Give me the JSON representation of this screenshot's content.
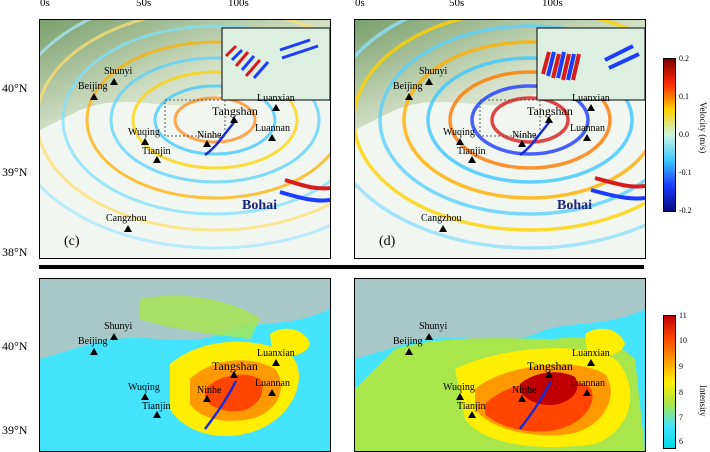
{
  "time_ticks": [
    "0s",
    "50s",
    "100s"
  ],
  "lat_labels": {
    "n40": "40°N",
    "n39": "39°N",
    "n38": "38°N"
  },
  "places": {
    "shunyi": "Shunyi",
    "beijing": "Beijing",
    "tangshan": "Tangshan",
    "luanxian": "Luanxian",
    "luannan": "Luannan",
    "wuqing": "Wuqing",
    "ninhe": "Ninhe",
    "tianjin": "Tianjin",
    "cangzhou": "Cangzhou",
    "bohai": "Bohai"
  },
  "panel_letters": {
    "c": "(c)",
    "d": "(d)"
  },
  "velocity_colorbar": {
    "label": "Velocity (m/s)",
    "ticks": [
      "0.2",
      "0.1",
      "0.0",
      "-0.1",
      "-0.2"
    ]
  },
  "intensity_colorbar": {
    "label": "Intensity",
    "ticks": [
      "11",
      "10",
      "9",
      "8",
      "7",
      "6"
    ]
  },
  "colors": {
    "velocity_scale": [
      "#7f0000",
      "#ff2a00",
      "#ffd200",
      "#c8f5e0",
      "#3cc8ff",
      "#1a3cff",
      "#0a0a80"
    ],
    "intensity_scale": [
      "#c00000",
      "#ff4500",
      "#ff9900",
      "#ffee00",
      "#a8e64c",
      "#44e4ff",
      "#00d8e8"
    ],
    "fault_trace": "#1a2bd6"
  }
}
